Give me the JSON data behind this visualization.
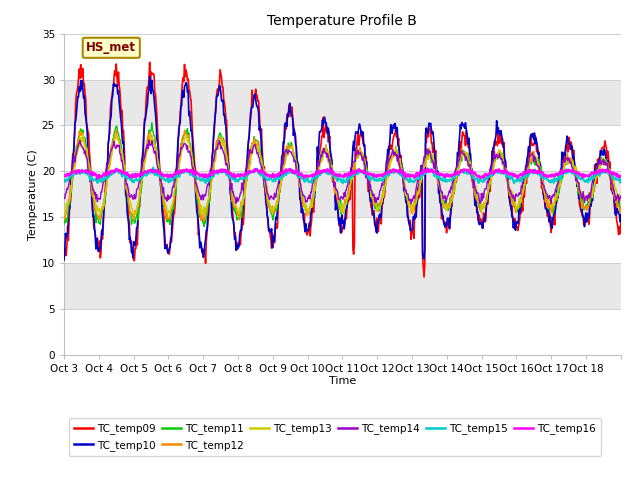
{
  "title": "Temperature Profile B",
  "xlabel": "Time",
  "ylabel": "Temperature (C)",
  "ylim": [
    0,
    35
  ],
  "yticks": [
    0,
    5,
    10,
    15,
    20,
    25,
    30,
    35
  ],
  "annotation": "HS_met",
  "series_colors": {
    "TC_temp09": "#ff0000",
    "TC_temp10": "#0000cc",
    "TC_temp11": "#00cc00",
    "TC_temp12": "#ff8800",
    "TC_temp13": "#cccc00",
    "TC_temp14": "#9900cc",
    "TC_temp15": "#00cccc",
    "TC_temp16": "#ff00ff"
  },
  "x_tick_labels": [
    "Oct 3",
    "Oct 4",
    "Oct 5",
    "Oct 6",
    "Oct 7",
    "Oct 8",
    "Oct 9",
    "Oct 10",
    "Oct 11",
    "Oct 12",
    "Oct 13",
    "Oct 14",
    "Oct 15",
    "Oct 16",
    "Oct 17",
    "Oct 18"
  ],
  "stripe_colors": [
    "#ffffff",
    "#e8e8e8"
  ],
  "fig_bg": "#ffffff",
  "spine_color": "#c0c0c0"
}
